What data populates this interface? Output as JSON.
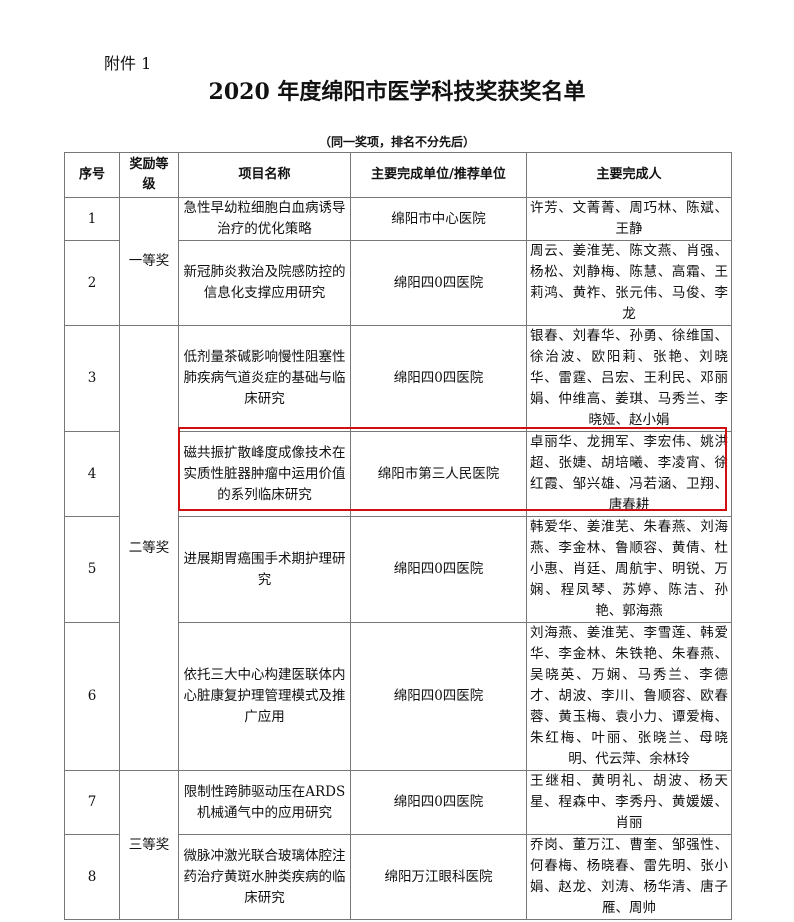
{
  "attachment_label": "附件 1",
  "title": "2020 年度绵阳市医学科技奖获奖名单",
  "note": "（同一奖项，排名不分先后）",
  "headers": {
    "seq": "序号",
    "level": "奖励等级",
    "project": "项目名称",
    "unit": "主要完成单位/推荐单位",
    "persons": "主要完成人"
  },
  "levels": {
    "first": "一等奖",
    "second": "二等奖",
    "third": "三等奖"
  },
  "highlight_color": "#d01010",
  "rows": [
    {
      "seq": "1",
      "project": "急性早幼粒细胞白血病诱导治疗的优化策略",
      "unit": "绵阳市中心医院",
      "persons": "许芳、文菁菁、周巧林、陈斌、王静"
    },
    {
      "seq": "2",
      "project": "新冠肺炎救治及院感防控的信息化支撑应用研究",
      "unit": "绵阳四0四医院",
      "persons": "周云、姜淮芜、陈文燕、肖强、杨松、刘静梅、陈慧、高霜、王莉鸿、黄祚、张元伟、马俊、李龙"
    },
    {
      "seq": "3",
      "project": "低剂量茶碱影响慢性阻塞性肺疾病气道炎症的基础与临床研究",
      "unit": "绵阳四0四医院",
      "persons": "银春、刘春华、孙勇、徐维国、徐治波、欧阳莉、张艳、刘晓华、雷霆、吕宏、王利民、邓丽娟、仲维高、姜琪、马秀兰、李晓娅、赵小娟"
    },
    {
      "seq": "4",
      "project": "磁共振扩散峰度成像技术在实质性脏器肿瘤中运用价值的系列临床研究",
      "unit": "绵阳市第三人民医院",
      "persons": "卓丽华、龙拥军、李宏伟、姚洪超、张婕、胡培曦、李凌宵、徐红霞、邹兴雄、冯若涵、卫翔、唐春耕"
    },
    {
      "seq": "5",
      "project": "进展期胃癌围手术期护理研究",
      "unit": "绵阳四0四医院",
      "persons": "韩爱华、姜淮芜、朱春燕、刘海燕、李金林、鲁顺容、黄倩、杜小惠、肖廷、周航宇、明锐、万娴、程凤琴、苏婷、陈洁、孙艳、郭海燕"
    },
    {
      "seq": "6",
      "project": "依托三大中心构建医联体内心脏康复护理管理模式及推广应用",
      "unit": "绵阳四0四医院",
      "persons": "刘海燕、姜淮芜、李雪莲、韩爱华、李金林、朱铁艳、朱春燕、吴晓英、万娴、马秀兰、李德才、胡波、李川、鲁顺容、欧春蓉、黄玉梅、袁小力、谭爱梅、朱红梅、叶丽、张晓兰、母晓明、代云萍、余林玲"
    },
    {
      "seq": "7",
      "project": "限制性跨肺驱动压在ARDS 机械通气中的应用研究",
      "unit": "绵阳四0四医院",
      "persons": "王继相、黄明礼、胡波、杨天星、程森中、李秀丹、黄媛媛、肖丽"
    },
    {
      "seq": "8",
      "project": "微脉冲激光联合玻璃体腔注药治疗黄斑水肿类疾病的临床研究",
      "unit": "绵阳万江眼科医院",
      "persons": "乔岗、董万江、曹奎、邹强性、何春梅、杨晓春、雷先明、张小娟、赵龙、刘涛、杨华清、唐子雁、周帅"
    }
  ]
}
